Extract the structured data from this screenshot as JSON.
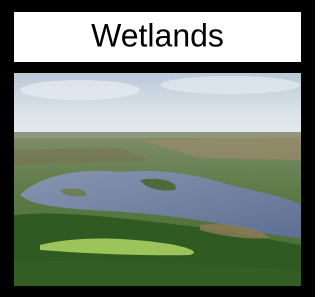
{
  "title": "Wetlands"
}
